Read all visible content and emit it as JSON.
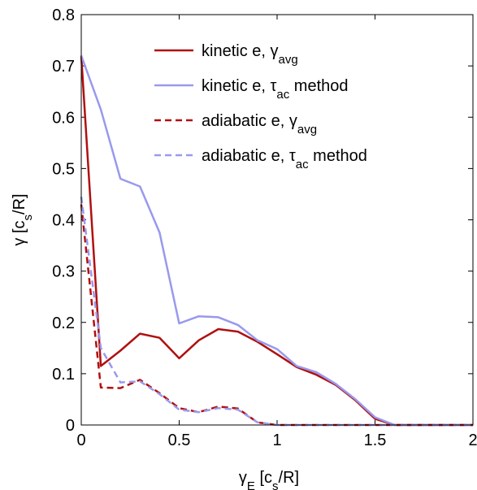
{
  "chart_data": {
    "type": "line",
    "xlabel": [
      "γ",
      "E",
      " [c",
      "s",
      "/R]"
    ],
    "ylabel": [
      "γ [c",
      "s",
      "/R]"
    ],
    "x": [
      0,
      0.1,
      0.2,
      0.3,
      0.4,
      0.5,
      0.6,
      0.7,
      0.8,
      0.9,
      1,
      1.1,
      1.2,
      1.3,
      1.4,
      1.5,
      1.6,
      1.7,
      1.8,
      1.9,
      2
    ],
    "series": [
      {
        "name": [
          "kinetic e,  γ",
          "avg"
        ],
        "color": "#b01010",
        "dash": false,
        "values": [
          0.72,
          0.115,
          0.145,
          0.178,
          0.17,
          0.13,
          0.165,
          0.187,
          0.182,
          0.162,
          0.138,
          0.113,
          0.098,
          0.078,
          0.048,
          0.012,
          0,
          0,
          0,
          0,
          0
        ]
      },
      {
        "name": [
          "kinetic e,  τ",
          "ac",
          " method"
        ],
        "color": "#9999ee",
        "dash": false,
        "values": [
          0.72,
          0.615,
          0.48,
          0.465,
          0.375,
          0.198,
          0.212,
          0.21,
          0.195,
          0.165,
          0.148,
          0.115,
          0.103,
          0.08,
          0.05,
          0.015,
          0,
          0,
          0,
          0,
          0
        ]
      },
      {
        "name": [
          "adiabatic e,  γ",
          "avg"
        ],
        "color": "#b01010",
        "dash": true,
        "values": [
          0.43,
          0.073,
          0.072,
          0.088,
          0.062,
          0.033,
          0.025,
          0.036,
          0.032,
          0.005,
          0,
          0,
          0,
          0,
          0,
          0,
          0,
          0,
          0,
          0,
          0
        ]
      },
      {
        "name": [
          "adiabatic e,  τ",
          "ac",
          " method"
        ],
        "color": "#9999ee",
        "dash": true,
        "values": [
          0.445,
          0.15,
          0.083,
          0.085,
          0.06,
          0.03,
          0.025,
          0.033,
          0.03,
          0.005,
          0,
          0,
          0,
          0,
          0,
          0,
          0,
          0,
          0,
          0,
          0
        ]
      }
    ],
    "xlim": [
      0,
      2
    ],
    "xticks": [
      0,
      0.5,
      1,
      1.5,
      2
    ],
    "ylim": [
      0,
      0.8
    ],
    "yticks": [
      0,
      0.1,
      0.2,
      0.3,
      0.4,
      0.5,
      0.6,
      0.7,
      0.8
    ],
    "legend": "upper right"
  }
}
